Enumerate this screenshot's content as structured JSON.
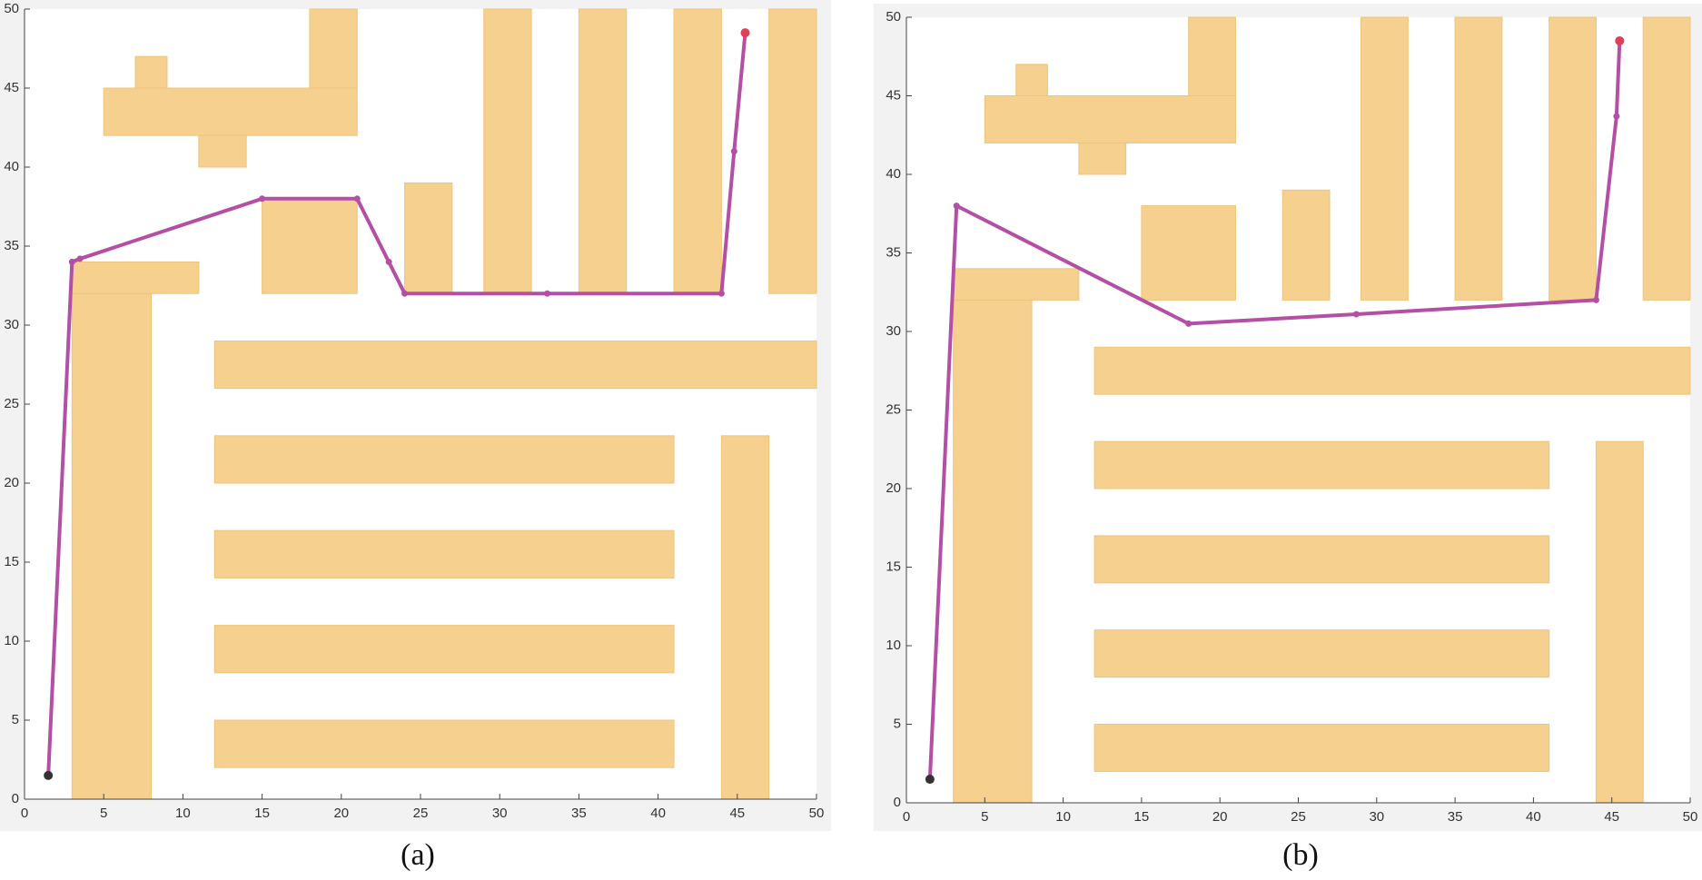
{
  "chart_data": [
    {
      "type": "line",
      "caption": "(a)",
      "xlim": [
        0,
        50
      ],
      "ylim": [
        0,
        50
      ],
      "xticks": [
        0,
        5,
        10,
        15,
        20,
        25,
        30,
        35,
        40,
        45,
        50
      ],
      "yticks": [
        0,
        5,
        10,
        15,
        20,
        25,
        30,
        35,
        40,
        45,
        50
      ],
      "obstacle_color": "#f6d08e",
      "obstacles": [
        [
          3,
          0,
          8,
          32
        ],
        [
          3,
          32,
          11,
          34
        ],
        [
          5,
          42,
          21,
          45
        ],
        [
          7,
          45,
          9,
          47
        ],
        [
          11,
          40,
          14,
          42
        ],
        [
          18,
          45,
          21,
          50
        ],
        [
          15,
          32,
          21,
          38
        ],
        [
          24,
          32,
          27,
          39
        ],
        [
          29,
          32,
          32,
          50
        ],
        [
          35,
          32,
          38,
          50
        ],
        [
          41,
          32,
          44,
          50
        ],
        [
          47,
          32,
          50,
          50
        ],
        [
          12,
          26,
          50,
          29
        ],
        [
          12,
          20,
          41,
          23
        ],
        [
          12,
          14,
          41,
          17
        ],
        [
          12,
          8,
          41,
          11
        ],
        [
          12,
          2,
          41,
          5
        ],
        [
          44,
          0,
          47,
          23
        ]
      ],
      "series": [
        {
          "color": "#b34fa4",
          "start_color": "#333333",
          "goal_color": "#e0405a",
          "x": [
            1.5,
            3,
            3.5,
            15,
            21,
            23,
            24,
            33,
            44,
            44.8,
            45.5
          ],
          "values": [
            1.5,
            34,
            34.2,
            38,
            38,
            34,
            32,
            32,
            32,
            41,
            48.5
          ]
        }
      ]
    },
    {
      "type": "line",
      "caption": "(b)",
      "xlim": [
        0,
        50
      ],
      "ylim": [
        0,
        50
      ],
      "xticks": [
        0,
        5,
        10,
        15,
        20,
        25,
        30,
        35,
        40,
        45,
        50
      ],
      "yticks": [
        0,
        5,
        10,
        15,
        20,
        25,
        30,
        35,
        40,
        45,
        50
      ],
      "obstacle_color": "#f6d08e",
      "obstacles": [
        [
          3,
          0,
          8,
          32
        ],
        [
          3,
          32,
          11,
          34
        ],
        [
          5,
          42,
          21,
          45
        ],
        [
          7,
          45,
          9,
          47
        ],
        [
          11,
          40,
          14,
          42
        ],
        [
          18,
          45,
          21,
          50
        ],
        [
          15,
          32,
          21,
          38
        ],
        [
          24,
          32,
          27,
          39
        ],
        [
          29,
          32,
          32,
          50
        ],
        [
          35,
          32,
          38,
          50
        ],
        [
          41,
          32,
          44,
          50
        ],
        [
          47,
          32,
          50,
          50
        ],
        [
          12,
          26,
          50,
          29
        ],
        [
          12,
          20,
          41,
          23
        ],
        [
          12,
          14,
          41,
          17
        ],
        [
          12,
          8,
          41,
          11
        ],
        [
          12,
          2,
          41,
          5
        ],
        [
          44,
          0,
          47,
          23
        ]
      ],
      "series": [
        {
          "color": "#b34fa4",
          "start_color": "#333333",
          "goal_color": "#e0405a",
          "x": [
            1.5,
            3.2,
            18,
            28.7,
            44,
            45.3,
            45.5
          ],
          "values": [
            1.5,
            38,
            30.5,
            31.1,
            32,
            43.7,
            48.5
          ]
        }
      ]
    }
  ]
}
